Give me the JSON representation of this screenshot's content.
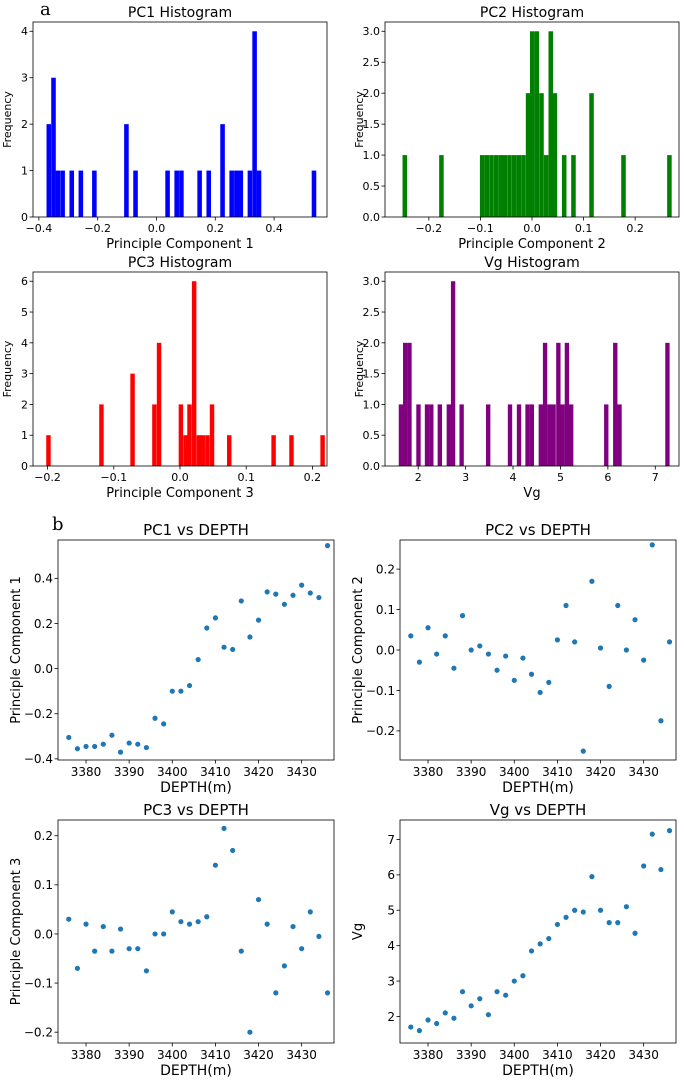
{
  "panel_labels": {
    "a": "a",
    "b": "b"
  },
  "chart_data": [
    {
      "id": "pc1_hist",
      "type": "bar",
      "title": "PC1 Histogram",
      "xlabel": "Principle Component 1",
      "ylabel": "Frequency",
      "color": "#0000ff",
      "xlim": [
        -0.42,
        0.58
      ],
      "ylim": [
        0,
        4.2
      ],
      "bin_width": 0.0155,
      "xticks": [
        -0.4,
        -0.2,
        0.0,
        0.2,
        0.4
      ],
      "xtick_labels": [
        "−0.4",
        "−0.2",
        "0.0",
        "0.2",
        "0.4"
      ],
      "yticks": [
        0,
        1,
        2,
        3,
        4
      ],
      "ytick_labels": [
        "0",
        "1",
        "2",
        "3",
        "4"
      ],
      "bins": [
        [
          -0.374,
          2
        ],
        [
          -0.358,
          3
        ],
        [
          -0.343,
          1
        ],
        [
          -0.327,
          1
        ],
        [
          -0.296,
          1
        ],
        [
          -0.265,
          1
        ],
        [
          -0.219,
          1
        ],
        [
          -0.11,
          2
        ],
        [
          -0.079,
          1
        ],
        [
          0.03,
          1
        ],
        [
          0.061,
          1
        ],
        [
          0.077,
          1
        ],
        [
          0.139,
          1
        ],
        [
          0.17,
          1
        ],
        [
          0.217,
          2
        ],
        [
          0.248,
          1
        ],
        [
          0.264,
          1
        ],
        [
          0.279,
          1
        ],
        [
          0.31,
          1
        ],
        [
          0.326,
          4
        ],
        [
          0.341,
          1
        ],
        [
          0.528,
          1
        ]
      ]
    },
    {
      "id": "pc2_hist",
      "type": "bar",
      "title": "PC2 Histogram",
      "xlabel": "Principle Component 2",
      "ylabel": "Frequency",
      "color": "#008000",
      "xlim": [
        -0.285,
        0.285
      ],
      "ylim": [
        0,
        3.15
      ],
      "bin_width": 0.0088,
      "xticks": [
        -0.2,
        -0.1,
        0.0,
        0.1,
        0.2
      ],
      "xtick_labels": [
        "−0.2",
        "−0.1",
        "0.0",
        "0.1",
        "0.2"
      ],
      "yticks": [
        0,
        0.5,
        1.0,
        1.5,
        2.0,
        2.5,
        3.0
      ],
      "ytick_labels": [
        "0.0",
        "0.5",
        "1.0",
        "1.5",
        "2.0",
        "2.5",
        "3.0"
      ],
      "bins": [
        [
          -0.251,
          1
        ],
        [
          -0.18,
          1
        ],
        [
          -0.101,
          1
        ],
        [
          -0.092,
          1
        ],
        [
          -0.083,
          1
        ],
        [
          -0.074,
          1
        ],
        [
          -0.065,
          1
        ],
        [
          -0.057,
          1
        ],
        [
          -0.048,
          1
        ],
        [
          -0.039,
          1
        ],
        [
          -0.03,
          1
        ],
        [
          -0.021,
          1
        ],
        [
          -0.012,
          2
        ],
        [
          -0.004,
          3
        ],
        [
          0.005,
          3
        ],
        [
          0.014,
          2
        ],
        [
          0.023,
          1
        ],
        [
          0.032,
          3
        ],
        [
          0.04,
          2
        ],
        [
          0.058,
          1
        ],
        [
          0.076,
          1
        ],
        [
          0.111,
          2
        ],
        [
          0.173,
          1
        ],
        [
          0.262,
          1
        ]
      ]
    },
    {
      "id": "pc3_hist",
      "type": "bar",
      "title": "PC3 Histogram",
      "xlabel": "Principle Component 3",
      "ylabel": "Frequency",
      "color": "#ff0000",
      "xlim": [
        -0.222,
        0.222
      ],
      "ylim": [
        0,
        6.3
      ],
      "bin_width": 0.0067,
      "xticks": [
        -0.2,
        -0.1,
        0.0,
        0.1,
        0.2
      ],
      "xtick_labels": [
        "−0.2",
        "−0.1",
        "0.0",
        "0.1",
        "0.2"
      ],
      "yticks": [
        0,
        1,
        2,
        3,
        4,
        5,
        6
      ],
      "ytick_labels": [
        "0",
        "1",
        "2",
        "3",
        "4",
        "5",
        "6"
      ],
      "bins": [
        [
          -0.202,
          1
        ],
        [
          -0.122,
          2
        ],
        [
          -0.075,
          3
        ],
        [
          -0.042,
          2
        ],
        [
          -0.035,
          4
        ],
        [
          -0.002,
          2
        ],
        [
          0.005,
          1
        ],
        [
          0.011,
          2
        ],
        [
          0.018,
          6
        ],
        [
          0.025,
          1
        ],
        [
          0.031,
          1
        ],
        [
          0.038,
          1
        ],
        [
          0.045,
          2
        ],
        [
          0.071,
          1
        ],
        [
          0.138,
          1
        ],
        [
          0.165,
          1
        ],
        [
          0.212,
          1
        ]
      ]
    },
    {
      "id": "vg_hist",
      "type": "bar",
      "title": "Vg Histogram",
      "xlabel": "Vg",
      "ylabel": "Frequency",
      "color": "#800080",
      "xlim": [
        1.3,
        7.5
      ],
      "ylim": [
        0,
        3.15
      ],
      "bin_width": 0.092,
      "xticks": [
        2,
        3,
        4,
        5,
        6,
        7
      ],
      "xtick_labels": [
        "2",
        "3",
        "4",
        "5",
        "6",
        "7"
      ],
      "yticks": [
        0,
        0.5,
        1.0,
        1.5,
        2.0,
        2.5,
        3.0
      ],
      "ytick_labels": [
        "0.0",
        "0.5",
        "1.0",
        "1.5",
        "2.0",
        "2.5",
        "3.0"
      ],
      "bins": [
        [
          1.59,
          1
        ],
        [
          1.68,
          2
        ],
        [
          1.77,
          2
        ],
        [
          1.96,
          1
        ],
        [
          2.14,
          1
        ],
        [
          2.23,
          1
        ],
        [
          2.41,
          1
        ],
        [
          2.6,
          1
        ],
        [
          2.69,
          3
        ],
        [
          2.87,
          1
        ],
        [
          3.43,
          1
        ],
        [
          3.89,
          1
        ],
        [
          4.08,
          1
        ],
        [
          4.26,
          1
        ],
        [
          4.35,
          1
        ],
        [
          4.54,
          1
        ],
        [
          4.63,
          2
        ],
        [
          4.72,
          1
        ],
        [
          4.81,
          1
        ],
        [
          4.91,
          2
        ],
        [
          5.0,
          1
        ],
        [
          5.09,
          2
        ],
        [
          5.18,
          1
        ],
        [
          5.92,
          1
        ],
        [
          6.11,
          2
        ],
        [
          6.2,
          1
        ],
        [
          7.21,
          2
        ]
      ]
    },
    {
      "id": "pc1_depth",
      "type": "scatter",
      "title": "PC1 vs DEPTH",
      "xlabel": "DEPTH(m)",
      "ylabel": "Principle Component 1",
      "color": "#1f77b4",
      "xlim": [
        3373.5,
        3437.5
      ],
      "ylim": [
        -0.405,
        0.57
      ],
      "xticks": [
        3380,
        3390,
        3400,
        3410,
        3420,
        3430
      ],
      "xtick_labels": [
        "3380",
        "3390",
        "3400",
        "3410",
        "3420",
        "3430"
      ],
      "yticks": [
        -0.4,
        -0.2,
        0.0,
        0.2,
        0.4
      ],
      "ytick_labels": [
        "−0.4",
        "−0.2",
        "0.0",
        "0.2",
        "0.4"
      ],
      "x": [
        3376,
        3378,
        3380,
        3382,
        3384,
        3386,
        3388,
        3390,
        3392,
        3394,
        3396,
        3398,
        3400,
        3402,
        3404,
        3406,
        3408,
        3410,
        3412,
        3414,
        3416,
        3418,
        3420,
        3422,
        3424,
        3426,
        3428,
        3430,
        3432,
        3434,
        3436
      ],
      "y": [
        -0.305,
        -0.355,
        -0.345,
        -0.345,
        -0.335,
        -0.295,
        -0.37,
        -0.33,
        -0.335,
        -0.35,
        -0.22,
        -0.245,
        -0.1,
        -0.1,
        -0.075,
        0.04,
        0.18,
        0.225,
        0.095,
        0.085,
        0.3,
        0.14,
        0.215,
        0.34,
        0.33,
        0.285,
        0.325,
        0.37,
        0.335,
        0.315,
        0.545
      ]
    },
    {
      "id": "pc2_depth",
      "type": "scatter",
      "title": "PC2 vs DEPTH",
      "xlabel": "DEPTH(m)",
      "ylabel": "Principle Component 2",
      "color": "#1f77b4",
      "xlim": [
        3373.5,
        3437.5
      ],
      "ylim": [
        -0.272,
        0.272
      ],
      "xticks": [
        3380,
        3390,
        3400,
        3410,
        3420,
        3430
      ],
      "xtick_labels": [
        "3380",
        "3390",
        "3400",
        "3410",
        "3420",
        "3430"
      ],
      "yticks": [
        -0.2,
        -0.1,
        0.0,
        0.1,
        0.2
      ],
      "ytick_labels": [
        "−0.2",
        "−0.1",
        "0.0",
        "0.1",
        "0.2"
      ],
      "x": [
        3376,
        3378,
        3380,
        3382,
        3384,
        3386,
        3388,
        3390,
        3392,
        3394,
        3396,
        3398,
        3400,
        3402,
        3404,
        3406,
        3408,
        3410,
        3412,
        3414,
        3416,
        3418,
        3420,
        3422,
        3424,
        3426,
        3428,
        3430,
        3432,
        3434,
        3436
      ],
      "y": [
        0.035,
        -0.03,
        0.055,
        -0.01,
        0.035,
        -0.045,
        0.085,
        0.0,
        0.01,
        -0.01,
        -0.05,
        -0.015,
        -0.075,
        -0.02,
        -0.06,
        -0.105,
        -0.08,
        0.025,
        0.11,
        0.02,
        -0.25,
        0.17,
        0.005,
        -0.09,
        0.11,
        0.0,
        0.075,
        -0.025,
        0.26,
        -0.175,
        0.02
      ]
    },
    {
      "id": "pc3_depth",
      "type": "scatter",
      "title": "PC3 vs DEPTH",
      "xlabel": "DEPTH(m)",
      "ylabel": "Principle Component 3",
      "color": "#1f77b4",
      "xlim": [
        3373.5,
        3437.5
      ],
      "ylim": [
        -0.222,
        0.232
      ],
      "xticks": [
        3380,
        3390,
        3400,
        3410,
        3420,
        3430
      ],
      "xtick_labels": [
        "3380",
        "3390",
        "3400",
        "3410",
        "3420",
        "3430"
      ],
      "yticks": [
        -0.2,
        -0.1,
        0.0,
        0.1,
        0.2
      ],
      "ytick_labels": [
        "−0.2",
        "−0.1",
        "0.0",
        "0.1",
        "0.2"
      ],
      "x": [
        3376,
        3378,
        3380,
        3382,
        3384,
        3386,
        3388,
        3390,
        3392,
        3394,
        3396,
        3398,
        3400,
        3402,
        3404,
        3406,
        3408,
        3410,
        3412,
        3414,
        3416,
        3418,
        3420,
        3422,
        3424,
        3426,
        3428,
        3430,
        3432,
        3434,
        3436
      ],
      "y": [
        0.03,
        -0.07,
        0.02,
        -0.035,
        0.015,
        -0.035,
        0.01,
        -0.03,
        -0.03,
        -0.075,
        0.0,
        0.0,
        0.045,
        0.025,
        0.02,
        0.025,
        0.035,
        0.14,
        0.215,
        0.17,
        -0.035,
        -0.2,
        0.07,
        0.02,
        -0.12,
        -0.065,
        0.015,
        -0.03,
        0.045,
        -0.005,
        -0.12
      ]
    },
    {
      "id": "vg_depth",
      "type": "scatter",
      "title": "Vg vs DEPTH",
      "xlabel": "DEPTH(m)",
      "ylabel": "Vg",
      "color": "#1f77b4",
      "xlim": [
        3373.5,
        3437.5
      ],
      "ylim": [
        1.25,
        7.55
      ],
      "xticks": [
        3380,
        3390,
        3400,
        3410,
        3420,
        3430
      ],
      "xtick_labels": [
        "3380",
        "3390",
        "3400",
        "3410",
        "3420",
        "3430"
      ],
      "yticks": [
        2,
        3,
        4,
        5,
        6,
        7
      ],
      "ytick_labels": [
        "2",
        "3",
        "4",
        "5",
        "6",
        "7"
      ],
      "x": [
        3376,
        3378,
        3380,
        3382,
        3384,
        3386,
        3388,
        3390,
        3392,
        3394,
        3396,
        3398,
        3400,
        3402,
        3404,
        3406,
        3408,
        3410,
        3412,
        3414,
        3416,
        3418,
        3420,
        3422,
        3424,
        3426,
        3428,
        3430,
        3432,
        3434,
        3436
      ],
      "y": [
        1.7,
        1.6,
        1.9,
        1.8,
        2.1,
        1.95,
        2.7,
        2.3,
        2.5,
        2.05,
        2.7,
        2.6,
        3.0,
        3.15,
        3.85,
        4.05,
        4.2,
        4.6,
        4.8,
        5.0,
        4.95,
        5.95,
        5.0,
        4.65,
        4.65,
        5.1,
        4.35,
        6.25,
        7.15,
        6.15,
        7.25
      ]
    }
  ]
}
